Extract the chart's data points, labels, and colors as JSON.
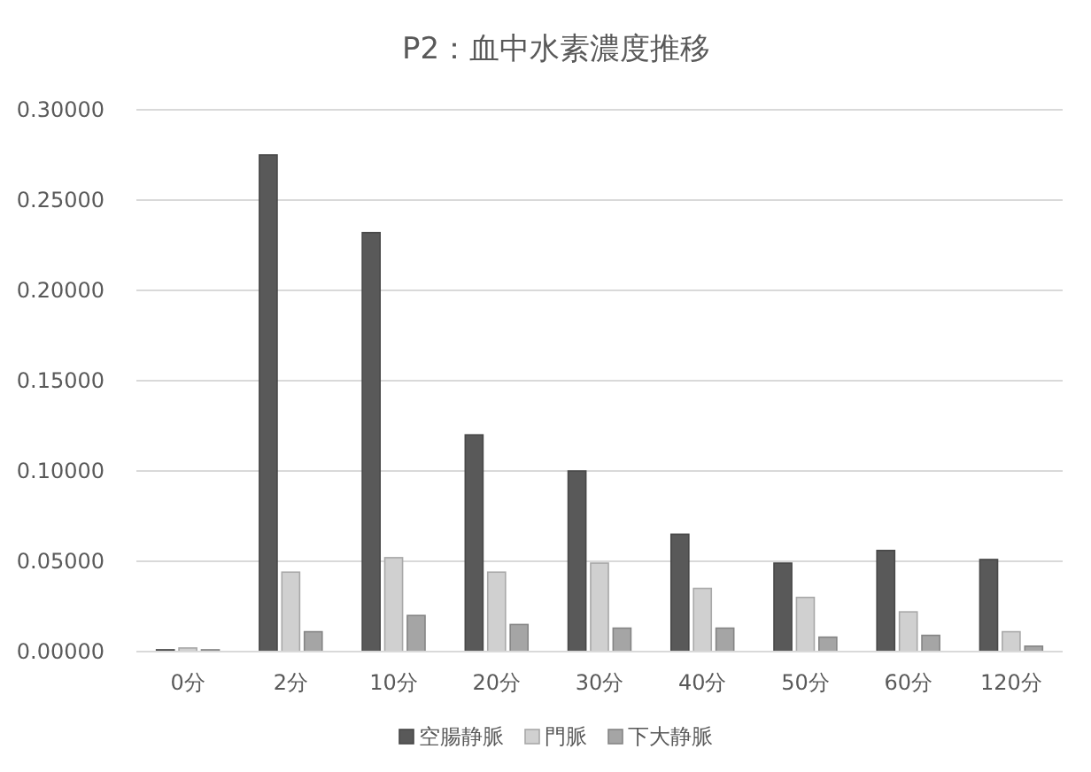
{
  "chart_data": {
    "type": "bar",
    "title": "P2：血中水素濃度推移",
    "categories": [
      "0分",
      "2分",
      "10分",
      "20分",
      "30分",
      "40分",
      "50分",
      "60分",
      "120分"
    ],
    "series": [
      {
        "name": "空腸静脈",
        "color": "#595959",
        "values": [
          0.001,
          0.275,
          0.232,
          0.12,
          0.1,
          0.065,
          0.049,
          0.056,
          0.051
        ]
      },
      {
        "name": "門脈",
        "color": "#d0d0d0",
        "values": [
          0.002,
          0.044,
          0.052,
          0.044,
          0.049,
          0.035,
          0.03,
          0.022,
          0.011
        ]
      },
      {
        "name": "下大静脈",
        "color": "#a5a5a5",
        "values": [
          0.001,
          0.011,
          0.02,
          0.015,
          0.013,
          0.013,
          0.008,
          0.009,
          0.003
        ]
      }
    ],
    "ylim": [
      0,
      0.3
    ],
    "yticks": [
      {
        "value": 0,
        "label": "0.00000"
      },
      {
        "value": 0.05,
        "label": "0.05000"
      },
      {
        "value": 0.1,
        "label": "0.10000"
      },
      {
        "value": 0.15,
        "label": "0.15000"
      },
      {
        "value": 0.2,
        "label": "0.20000"
      },
      {
        "value": 0.25,
        "label": "0.25000"
      },
      {
        "value": 0.3,
        "label": "0.30000"
      }
    ],
    "grid": "y",
    "legend": "bottom"
  }
}
